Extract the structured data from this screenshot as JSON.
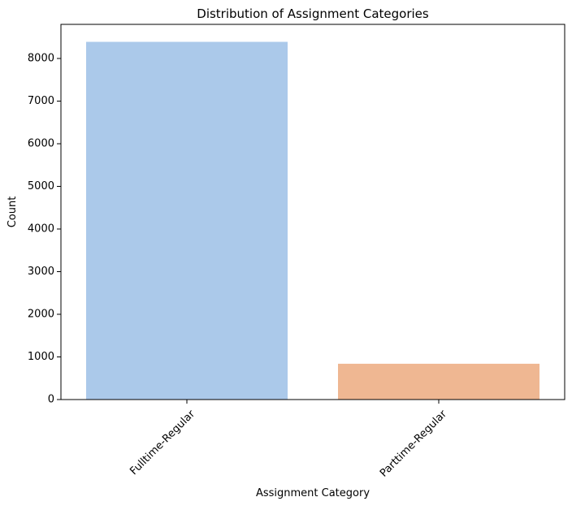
{
  "chart_data": {
    "type": "bar",
    "title": "Distribution of Assignment Categories",
    "xlabel": "Assignment Category",
    "ylabel": "Count",
    "categories": [
      "Fulltime-Regular",
      "Parttime-Regular"
    ],
    "values": [
      8390,
      840
    ],
    "colors": [
      "#abc9ea",
      "#efb792"
    ],
    "ylim": [
      0,
      8800
    ],
    "yticks": [
      0,
      1000,
      2000,
      3000,
      4000,
      5000,
      6000,
      7000,
      8000
    ],
    "ytick_labels": [
      "0",
      "1000",
      "2000",
      "3000",
      "4000",
      "5000",
      "6000",
      "7000",
      "8000"
    ],
    "xtick_rotation_deg": 45,
    "grid": false,
    "legend": "none"
  }
}
